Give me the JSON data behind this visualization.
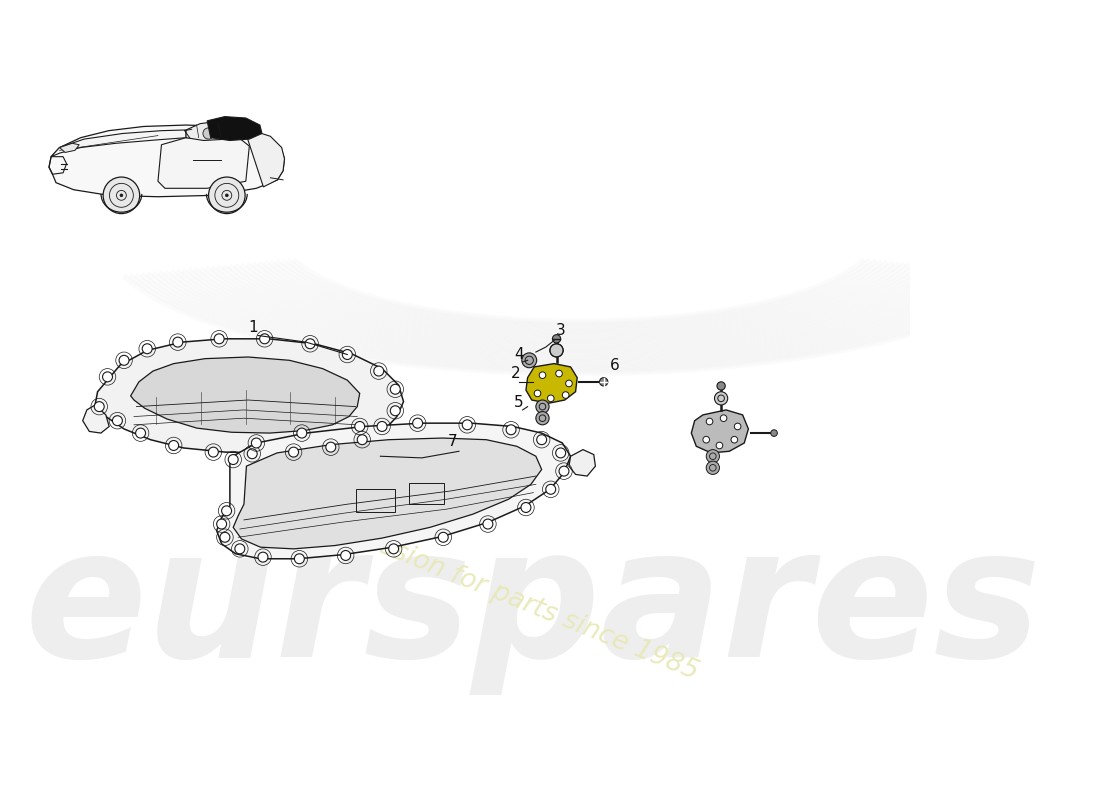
{
  "background_color": "#ffffff",
  "line_color": "#1a1a1a",
  "watermark1_color": "#e0e0e0",
  "watermark2_color": "#e8e8b8",
  "part_label_color": "#111111",
  "panel_face_color": "#f2f2f2",
  "panel_inner_color": "#d8d8d8",
  "panel2_face_color": "#eeeeee",
  "hinge_color": "#c8b800",
  "hinge2_color": "#bbbbbb",
  "bolt_color": "#888888",
  "washer_color": "#999999"
}
